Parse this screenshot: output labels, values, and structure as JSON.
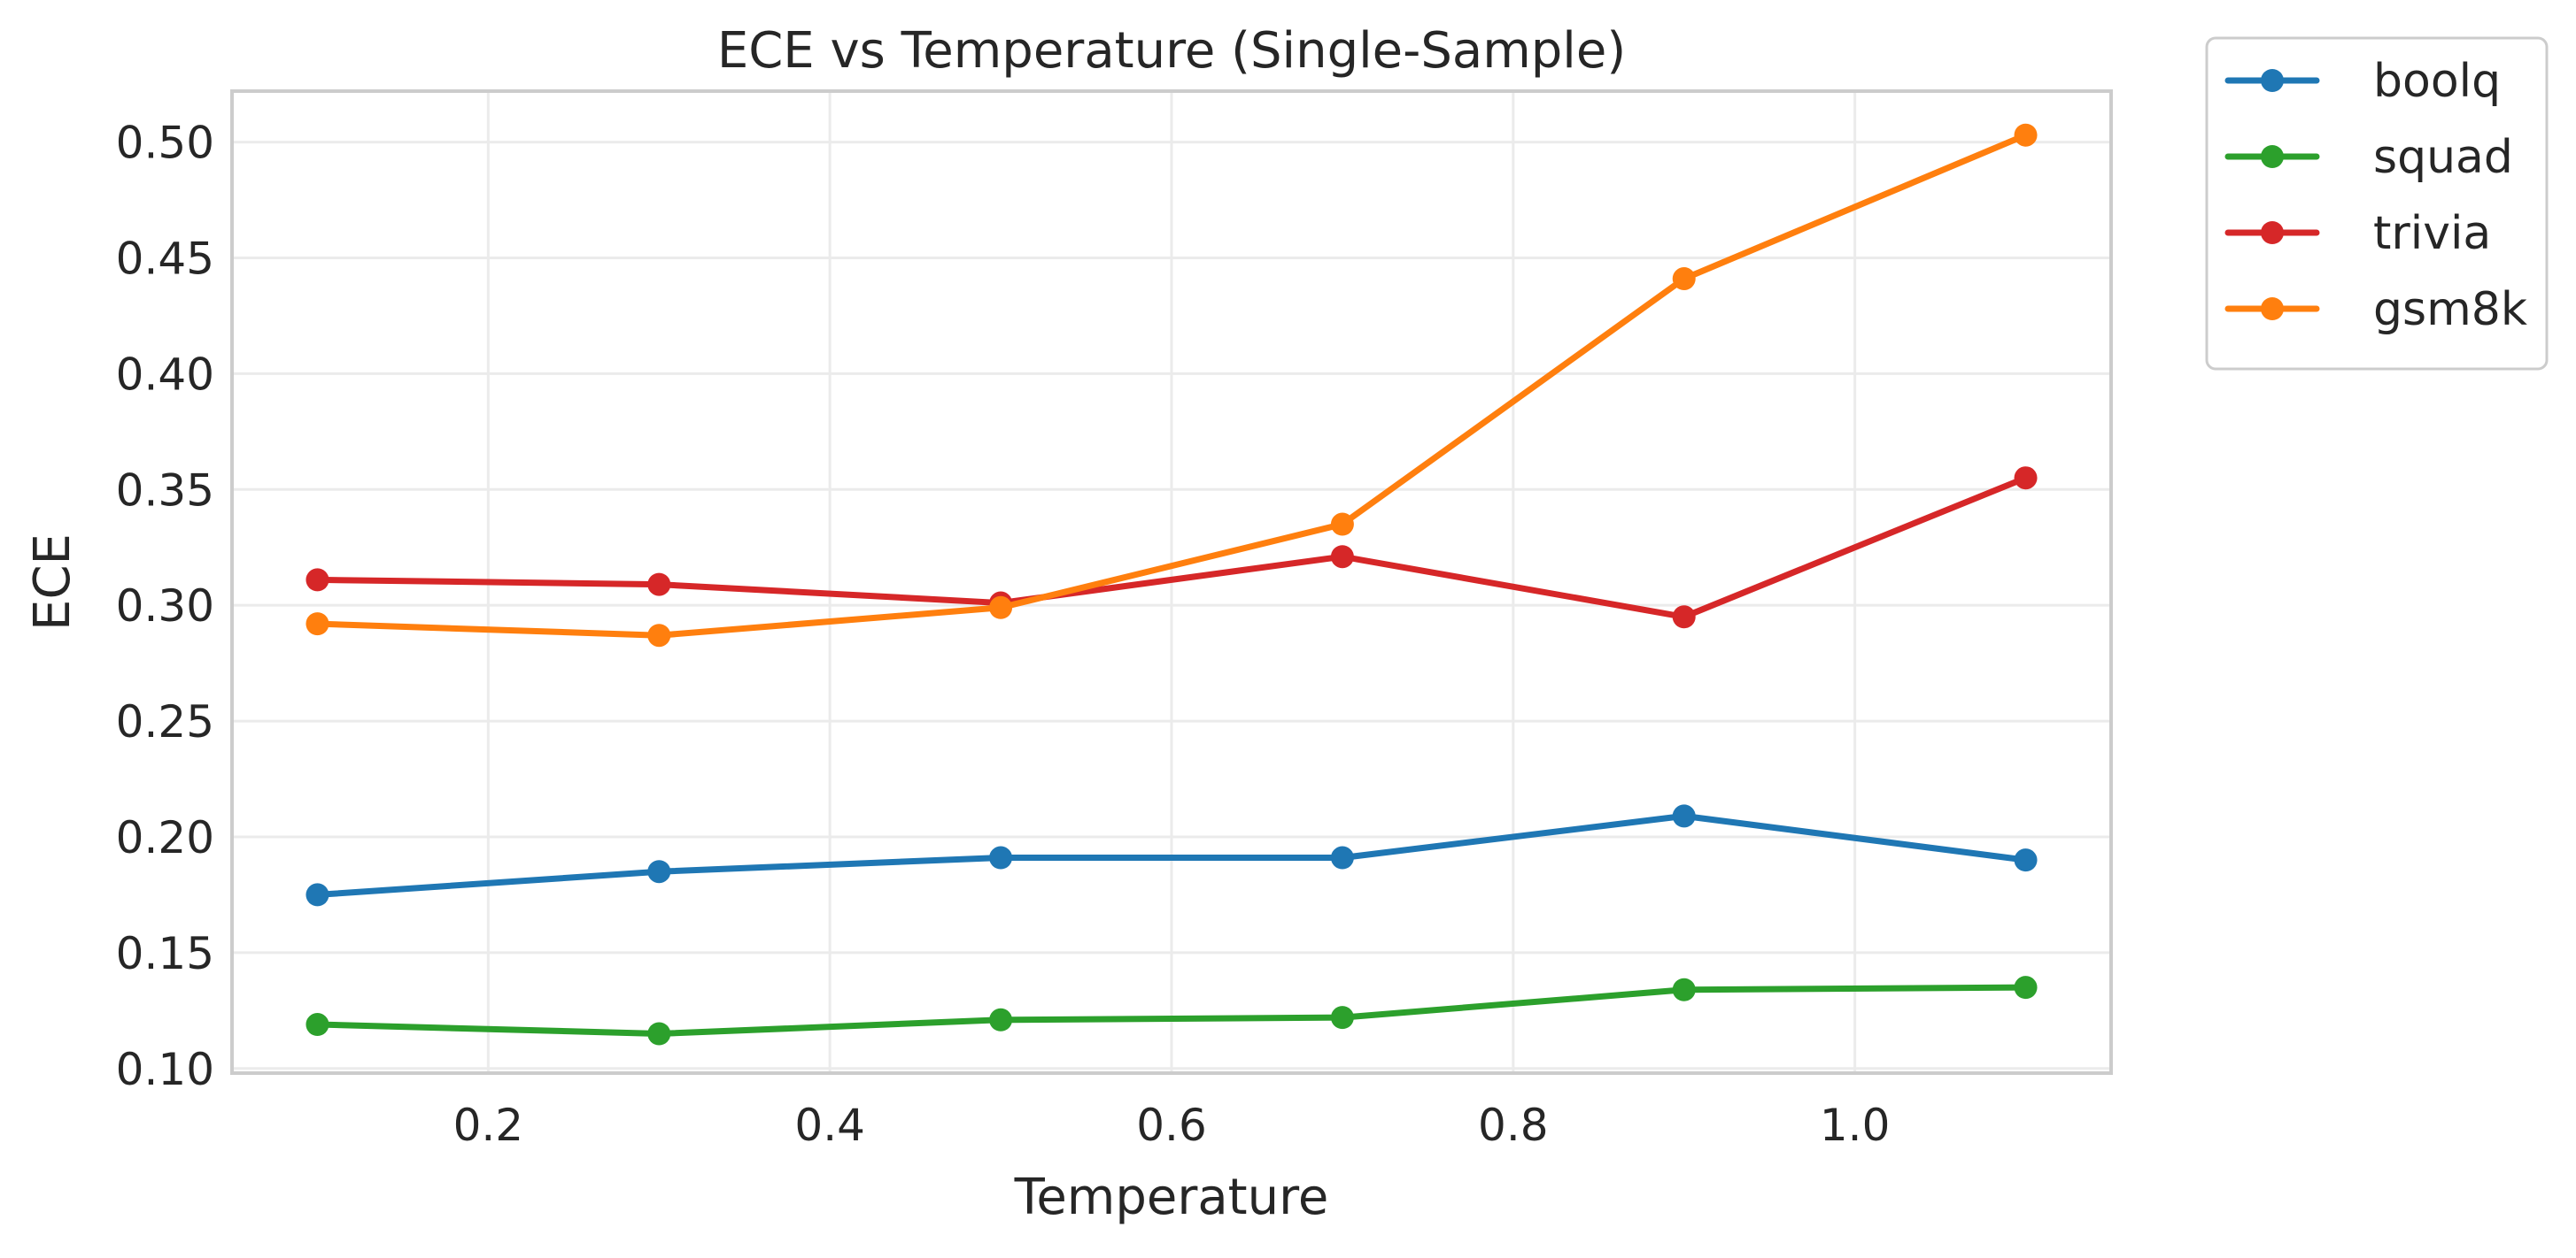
{
  "chart_data": {
    "type": "line",
    "title": "ECE vs Temperature (Single-Sample)",
    "xlabel": "Temperature",
    "ylabel": "ECE",
    "x": [
      0.1,
      0.3,
      0.5,
      0.7,
      0.9,
      1.1
    ],
    "xlim": [
      0.05,
      1.15
    ],
    "ylim": [
      0.098,
      0.522
    ],
    "xticks": [
      0.2,
      0.4,
      0.6,
      0.8,
      1.0
    ],
    "xtick_labels": [
      "0.2",
      "0.4",
      "0.6",
      "0.8",
      "1.0"
    ],
    "yticks": [
      0.1,
      0.15,
      0.2,
      0.25,
      0.3,
      0.35,
      0.4,
      0.45,
      0.5
    ],
    "ytick_labels": [
      "0.10",
      "0.15",
      "0.20",
      "0.25",
      "0.30",
      "0.35",
      "0.40",
      "0.45",
      "0.50"
    ],
    "grid": true,
    "legend_position": "outside-top-right",
    "series": [
      {
        "name": "boolq",
        "color": "#1f77b4",
        "values": [
          0.175,
          0.185,
          0.191,
          0.191,
          0.209,
          0.19
        ]
      },
      {
        "name": "squad",
        "color": "#2ca02c",
        "values": [
          0.119,
          0.115,
          0.121,
          0.122,
          0.134,
          0.135
        ]
      },
      {
        "name": "trivia",
        "color": "#d62728",
        "values": [
          0.311,
          0.309,
          0.301,
          0.321,
          0.295,
          0.355
        ]
      },
      {
        "name": "gsm8k",
        "color": "#ff7f0e",
        "values": [
          0.292,
          0.287,
          0.299,
          0.335,
          0.441,
          0.503
        ]
      }
    ]
  }
}
